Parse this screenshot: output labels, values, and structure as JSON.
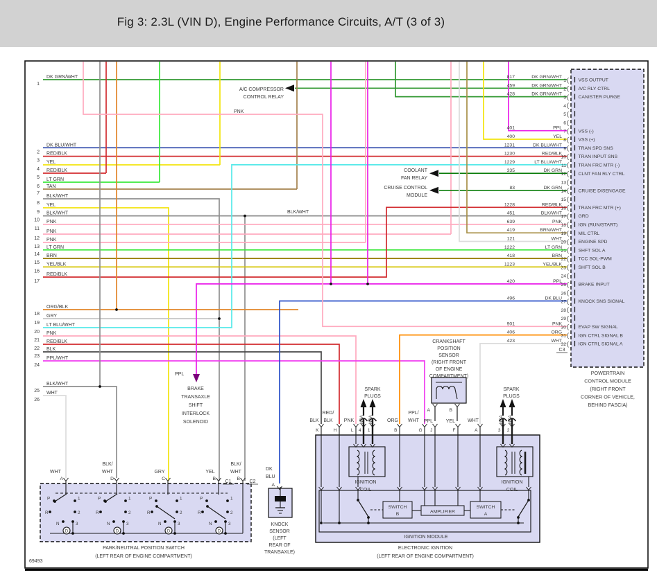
{
  "title": "Fig 3: 2.3L (VIN D), Engine Performance Circuits, A/T (3 of 3)",
  "figure_number": "69493",
  "colors": {
    "dk_grn_wht": "#339933",
    "dk_grn": "#0b7d0b",
    "dk_blu_wht": "#2b45aa",
    "dk_blu": "#2b50c8",
    "red_blk": "#d22b2f",
    "yel": "#f2e40c",
    "lt_grn": "#39e839",
    "tan": "#a5824e",
    "blk_wht": "#8f8f8f",
    "blk": "#474747",
    "pnk": "#ffaabf",
    "brn": "#997d05",
    "brn_wht": "#a89048",
    "yel_blk": "#d6c400",
    "org_blk": "#e2862a",
    "org": "#ff8c00",
    "gry": "#c4c4c4",
    "lt_blu_wht": "#55e9e9",
    "ppl": "#ea1fea",
    "ppl_wht": "#f03cf0",
    "wht": "#dcdcdc",
    "black": "#1c1c1c",
    "box_fill": "#d9d9f2"
  },
  "left_pins": [
    {
      "pin": "1",
      "label": "DK GRN/WHT",
      "color": "dk_grn_wht"
    },
    {
      "pin": "2",
      "label": "DK BLU/WHT",
      "color": "dk_blu_wht"
    },
    {
      "pin": "3",
      "label": "RED/BLK",
      "color": "red_blk"
    },
    {
      "pin": "4",
      "label": "YEL",
      "color": "yel"
    },
    {
      "pin": "5",
      "label": "RED/BLK",
      "color": "red_blk"
    },
    {
      "pin": "6",
      "label": "LT GRN",
      "color": "lt_grn"
    },
    {
      "pin": "7",
      "label": "TAN",
      "color": "tan"
    },
    {
      "pin": "8",
      "label": "BLK/WHT",
      "color": "blk_wht"
    },
    {
      "pin": "9",
      "label": "YEL",
      "color": "yel"
    },
    {
      "pin": "10",
      "label": "BLK/WHT",
      "color": "blk_wht"
    },
    {
      "pin": "11",
      "label": "PNK",
      "color": "pnk"
    },
    {
      "pin": "12",
      "label": "PNK",
      "color": "pnk"
    },
    {
      "pin": "13",
      "label": "PNK",
      "color": "pnk"
    },
    {
      "pin": "14",
      "label": "LT GRN",
      "color": "lt_grn"
    },
    {
      "pin": "15",
      "label": "BRN",
      "color": "brn"
    },
    {
      "pin": "16",
      "label": "YEL/BLK",
      "color": "yel_blk"
    },
    {
      "pin": "17",
      "label": "RED/BLK",
      "color": "red_blk"
    },
    {
      "pin": "18",
      "label": "ORG/BLK",
      "color": "org_blk"
    },
    {
      "pin": "19",
      "label": "GRY",
      "color": "gry"
    },
    {
      "pin": "20",
      "label": "LT BLU/WHT",
      "color": "lt_blu_wht"
    },
    {
      "pin": "21",
      "label": "PNK",
      "color": "pnk"
    },
    {
      "pin": "22",
      "label": "RED/BLK",
      "color": "red_blk"
    },
    {
      "pin": "23",
      "label": "BLK",
      "color": "blk"
    },
    {
      "pin": "24",
      "label": "PPL/WHT",
      "color": "ppl_wht"
    },
    {
      "pin": "25",
      "label": "BLK/WHT",
      "color": "blk_wht"
    },
    {
      "pin": "26",
      "label": "WHT",
      "color": "wht"
    }
  ],
  "pcm": {
    "connector": "C3",
    "name_lines": [
      "POWERTRAIN",
      "CONTROL MODULE",
      "(RIGHT FRONT",
      "CORNER OF VEHICLE,",
      "BEHIND FASCIA)"
    ],
    "pins": [
      {
        "pin": "1",
        "circuit": "817",
        "wire": "DK GRN/WHT",
        "color": "dk_grn_wht",
        "function": "VSS OUTPUT"
      },
      {
        "pin": "2",
        "circuit": "459",
        "wire": "DK GRN/WHT",
        "color": "dk_grn_wht",
        "function": "A/C RLY CTRL"
      },
      {
        "pin": "3",
        "circuit": "428",
        "wire": "DK GRN/WHT",
        "color": "dk_grn_wht",
        "function": "CANISTER PURGE"
      },
      {
        "pin": "4"
      },
      {
        "pin": "5"
      },
      {
        "pin": "6"
      },
      {
        "pin": "7",
        "circuit": "401",
        "wire": "PPL",
        "color": "ppl",
        "function": "VSS (-)"
      },
      {
        "pin": "8",
        "circuit": "400",
        "wire": "YEL",
        "color": "yel",
        "function": "VSS (+)"
      },
      {
        "pin": "9",
        "circuit": "1231",
        "wire": "DK BLU/WHT",
        "color": "dk_blu_wht",
        "function": "TRAN SPD SNS"
      },
      {
        "pin": "10",
        "circuit": "1230",
        "wire": "RED/BLK",
        "color": "red_blk",
        "function": "TRAN INPUT SNS"
      },
      {
        "pin": "11",
        "circuit": "1229",
        "wire": "LT BLU/WHT",
        "color": "lt_blu_wht",
        "function": "TRAN FRC MTR (-)"
      },
      {
        "pin": "12",
        "circuit": "335",
        "wire": "DK GRN",
        "color": "dk_grn",
        "function": "CLNT FAN RLY CTRL"
      },
      {
        "pin": "13"
      },
      {
        "pin": "14",
        "circuit": "83",
        "wire": "DK GRN",
        "color": "dk_grn",
        "function": "CRUISE DISENGAGE"
      },
      {
        "pin": "15"
      },
      {
        "pin": "16",
        "circuit": "1228",
        "wire": "RED/BLK",
        "color": "red_blk",
        "function": "TRAN FRC MTR (+)"
      },
      {
        "pin": "17",
        "circuit": "451",
        "wire": "BLK/WHT",
        "color": "blk_wht",
        "function": "GRD"
      },
      {
        "pin": "18",
        "circuit": "639",
        "wire": "PNK",
        "color": "pnk",
        "function": "IGN (RUN/START)"
      },
      {
        "pin": "19",
        "circuit": "419",
        "wire": "BRN/WHT",
        "color": "brn_wht",
        "function": "MIL CTRL"
      },
      {
        "pin": "20",
        "circuit": "121",
        "wire": "WHT",
        "color": "wht",
        "function": "ENGINE SPD"
      },
      {
        "pin": "21",
        "circuit": "1222",
        "wire": "LT GRN",
        "color": "lt_grn",
        "function": "SHFT SOL A"
      },
      {
        "pin": "22",
        "circuit": "418",
        "wire": "BRN",
        "color": "brn",
        "function": "TCC SOL-PWM"
      },
      {
        "pin": "23",
        "circuit": "1223",
        "wire": "YEL/BLK",
        "color": "yel_blk",
        "function": "SHFT SOL B"
      },
      {
        "pin": "24"
      },
      {
        "pin": "25",
        "circuit": "420",
        "wire": "PPL",
        "color": "ppl",
        "function": "BRAKE INPUT"
      },
      {
        "pin": "26"
      },
      {
        "pin": "27",
        "circuit": "496",
        "wire": "DK BLU",
        "color": "dk_blu",
        "function": "KNOCK SNS SIGNAL"
      },
      {
        "pin": "28"
      },
      {
        "pin": "29"
      },
      {
        "pin": "30",
        "circuit": "901",
        "wire": "PNK",
        "color": "pnk",
        "function": "EVAP SW SIGNAL"
      },
      {
        "pin": "31",
        "circuit": "406",
        "wire": "ORG",
        "color": "org",
        "function": "IGN CTRL SIGNAL B"
      },
      {
        "pin": "32",
        "circuit": "423",
        "wire": "WHT",
        "color": "wht",
        "function": "IGN CTRL SIGNAL A"
      }
    ]
  },
  "annotations": {
    "ac_relay": [
      "A/C COMPRESSOR",
      "CONTROL RELAY"
    ],
    "pnk_label": "PNK",
    "coolant": [
      "COOLANT",
      "FAN RELAY"
    ],
    "cruise": [
      "CRUISE CONTROL",
      "MODULE"
    ],
    "blk_wht_label": "BLK/WHT",
    "ppl_label": "PPL",
    "solenoid": [
      "BRAKE",
      "TRANSAXLE",
      "SHIFT",
      "INTERLOCK",
      "SOLENOID"
    ],
    "crank": [
      "CRANKSHAFT",
      "POSITION",
      "SENSOR",
      "(RIGHT FRONT",
      "OF ENGINE",
      "COMPARTMENT)"
    ],
    "spark": [
      "SPARK",
      "PLUGS"
    ],
    "dk_blu": [
      "DK",
      "BLU"
    ],
    "knock": [
      "KNOCK",
      "SENSOR",
      "(LEFT",
      "REAR OF",
      "TRANSAXLE)"
    ],
    "pn_switch": [
      "PARK/NEUTRAL POSITION SWITCH",
      "(LEFT REAR OF ENGINE COMPARTMENT)"
    ],
    "ei": [
      "ELECTRONIC IGNITION",
      "(LEFT REAR OF ENGINE COMPARTMENT)"
    ],
    "ign_module": "IGNITION MODULE",
    "ign_coil": [
      "IGNITION",
      "COIL"
    ],
    "switch_b": [
      "SWITCH",
      "B"
    ],
    "switch_a": [
      "SWITCH",
      "A"
    ],
    "amplifier": "AMPLIFIER",
    "nca": "NCA",
    "c1": "C1",
    "c2": "C2"
  },
  "module_pins": [
    {
      "pin": "K",
      "wire": [
        "BLK"
      ]
    },
    {
      "pin": "H",
      "wire": [
        "RED/",
        "BLK"
      ]
    },
    {
      "pin": "L",
      "wire": [
        "PNK"
      ]
    },
    {
      "pin": "4",
      "wire": [
        "NCA"
      ]
    },
    {
      "pin": "1",
      "wire": [
        "NCA"
      ]
    },
    {
      "pin": "B",
      "wire": [
        "ORG"
      ]
    },
    {
      "pin": "G",
      "wire": [
        "PPL/",
        "WHT"
      ]
    },
    {
      "pin": "J"
    },
    {
      "pin": "F"
    },
    {
      "pin": "A",
      "wire": [
        "WHT"
      ]
    },
    {
      "pin": "3",
      "wire": [
        "NCA"
      ]
    },
    {
      "pin": "2",
      "wire": [
        "NCA"
      ]
    }
  ],
  "crank_pins": [
    {
      "pin": "A",
      "wire": "PPL"
    },
    {
      "pin": "B",
      "wire": "YEL"
    }
  ],
  "knock_pin": "A",
  "pn_pins": [
    {
      "pin": "A",
      "wire": [
        "WHT"
      ]
    },
    {
      "pin": "D",
      "wire": [
        "BLK/",
        "WHT"
      ]
    },
    {
      "pin": "C",
      "wire": [
        "GRY"
      ]
    },
    {
      "pin": "B",
      "wire": [
        "YEL"
      ],
      "conn": "C1"
    },
    {
      "pin": "B",
      "wire": [
        "BLK/",
        "WHT"
      ],
      "conn": "C2"
    }
  ],
  "pn_positions": {
    "p": "P",
    "one": "1",
    "r": "R",
    "two": "2",
    "n": "N",
    "three": "3",
    "d": "D"
  }
}
